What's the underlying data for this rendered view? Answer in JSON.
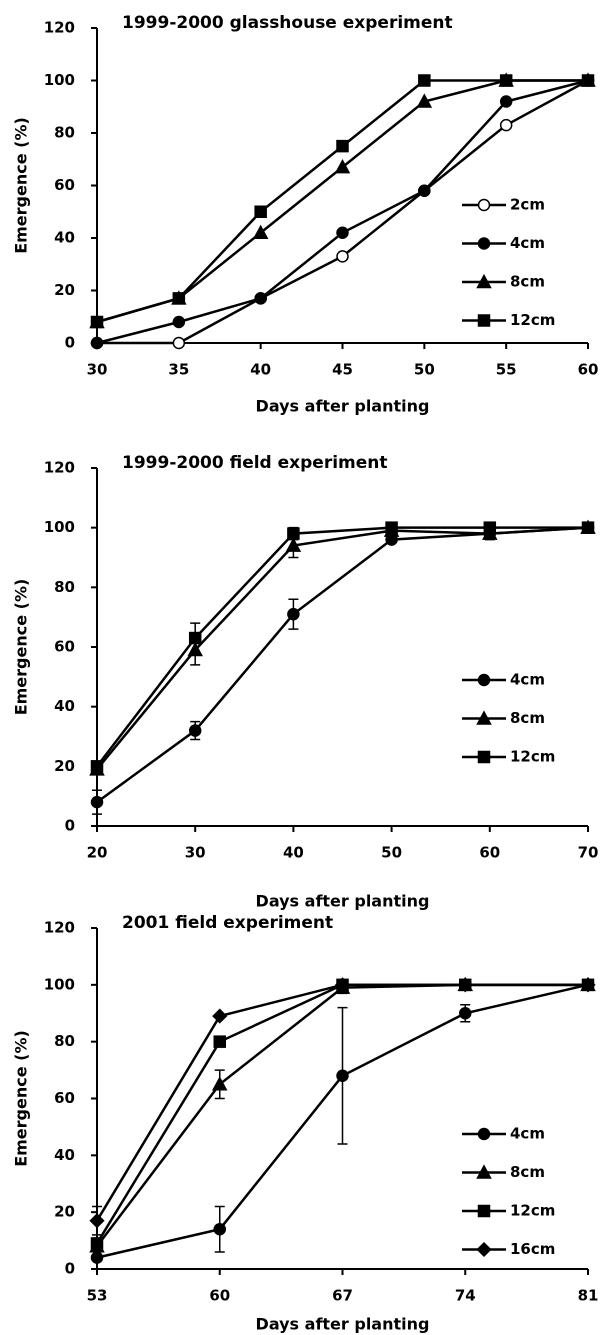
{
  "chart_data": [
    {
      "type": "line",
      "title": "1999-2000 glasshouse experiment",
      "x_label": "Days after planting",
      "y_label": "Emergence (%)",
      "x": [
        30,
        35,
        40,
        45,
        50,
        55,
        60
      ],
      "xlim": [
        30,
        60
      ],
      "xticks": [
        30,
        35,
        40,
        45,
        50,
        55,
        60
      ],
      "ylim": [
        0,
        120
      ],
      "yticks": [
        0,
        20,
        40,
        60,
        80,
        100,
        120
      ],
      "grid": false,
      "legend": "right",
      "series": [
        {
          "name": "2cm",
          "color": "#000000",
          "marker": "circle-open",
          "values": [
            0,
            0,
            17,
            33,
            58,
            83,
            100
          ]
        },
        {
          "name": "4cm",
          "color": "#000000",
          "marker": "circle",
          "values": [
            0,
            8,
            17,
            42,
            58,
            92,
            100
          ]
        },
        {
          "name": "8cm",
          "color": "#000000",
          "marker": "triangle",
          "values": [
            8,
            17,
            42,
            67,
            92,
            100,
            100
          ]
        },
        {
          "name": "12cm",
          "color": "#000000",
          "marker": "square",
          "values": [
            8,
            17,
            50,
            75,
            100,
            100,
            100
          ]
        }
      ]
    },
    {
      "type": "line",
      "title": "1999-2000 field experiment",
      "x_label": "Days after planting",
      "y_label": "Emergence (%)",
      "x": [
        20,
        30,
        40,
        50,
        60,
        70
      ],
      "xlim": [
        20,
        70
      ],
      "xticks": [
        20,
        30,
        40,
        50,
        60,
        70
      ],
      "ylim": [
        0,
        120
      ],
      "yticks": [
        0,
        20,
        40,
        60,
        80,
        100,
        120
      ],
      "grid": false,
      "legend": "right",
      "series": [
        {
          "name": "4cm",
          "color": "#000000",
          "marker": "circle",
          "values": [
            8,
            32,
            71,
            96,
            98,
            100
          ],
          "errors": [
            4,
            3,
            5,
            null,
            null,
            null
          ]
        },
        {
          "name": "8cm",
          "color": "#000000",
          "marker": "triangle",
          "values": [
            19,
            59,
            94,
            99,
            98,
            100
          ],
          "errors": [
            null,
            5,
            4,
            null,
            2,
            null
          ]
        },
        {
          "name": "12cm",
          "color": "#000000",
          "marker": "square",
          "values": [
            20,
            63,
            98,
            100,
            100,
            100
          ],
          "errors": [
            null,
            5,
            2,
            null,
            null,
            null
          ]
        }
      ]
    },
    {
      "type": "line",
      "title": "2001 field experiment",
      "x_label": "Days after planting",
      "y_label": "Emergence (%)",
      "x": [
        53,
        60,
        67,
        74,
        81
      ],
      "xlim": [
        53,
        81
      ],
      "xticks": [
        53,
        60,
        67,
        74,
        81
      ],
      "ylim": [
        0,
        120
      ],
      "yticks": [
        0,
        20,
        40,
        60,
        80,
        100,
        120
      ],
      "grid": false,
      "legend": "right",
      "series": [
        {
          "name": "4cm",
          "color": "#000000",
          "marker": "circle",
          "values": [
            4,
            14,
            68,
            90,
            100
          ],
          "errors": [
            null,
            8,
            24,
            3,
            null
          ]
        },
        {
          "name": "8cm",
          "color": "#000000",
          "marker": "triangle",
          "values": [
            8,
            65,
            99,
            100,
            100
          ],
          "errors": [
            null,
            5,
            2,
            null,
            null
          ]
        },
        {
          "name": "12cm",
          "color": "#000000",
          "marker": "square",
          "values": [
            9,
            80,
            100,
            100,
            100
          ],
          "errors": [
            null,
            null,
            null,
            null,
            null
          ]
        },
        {
          "name": "16cm",
          "color": "#000000",
          "marker": "diamond",
          "values": [
            17,
            89,
            100,
            100,
            100
          ],
          "errors": [
            5,
            null,
            null,
            null,
            null
          ]
        }
      ]
    }
  ]
}
